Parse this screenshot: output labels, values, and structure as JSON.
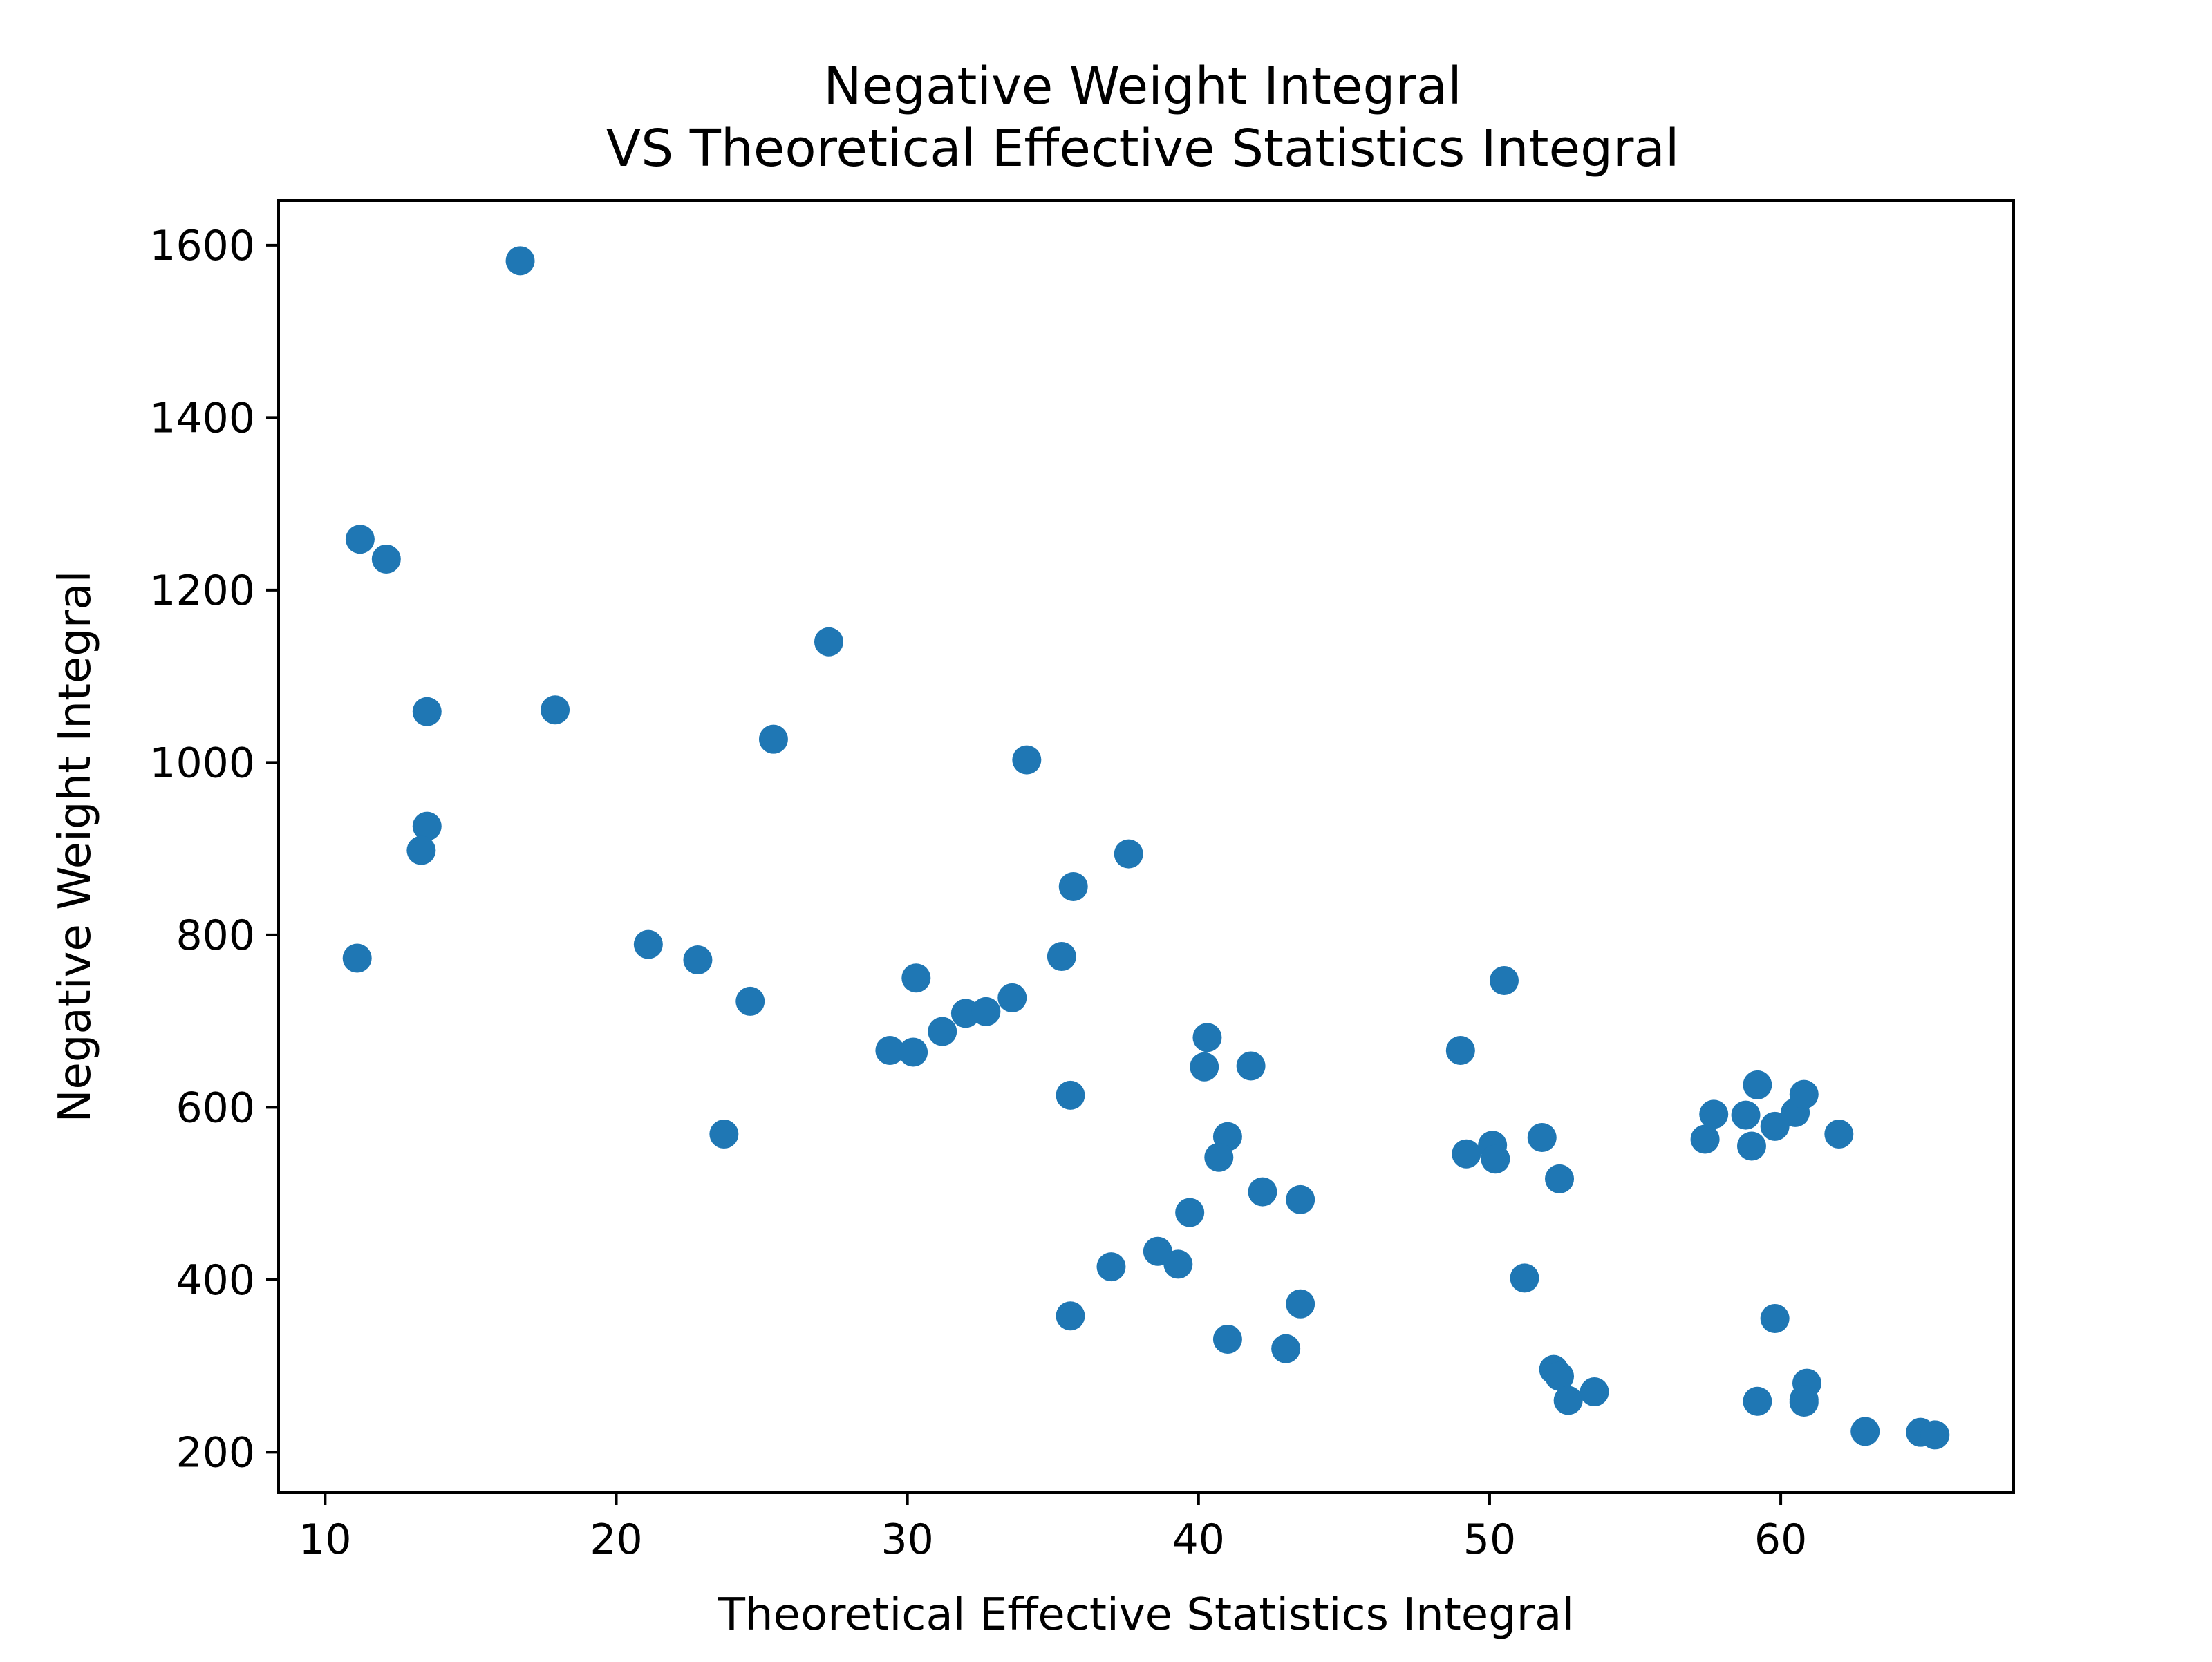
{
  "chart_data": {
    "type": "scatter",
    "title": [
      "Negative Weight Integral",
      "VS Theoretical Effective Statistics Integral"
    ],
    "xlabel": "Theoretical Effective Statistics Integral",
    "ylabel": "Negative Weight Integral",
    "xlim": [
      8.4,
      68.0
    ],
    "ylim": [
      153,
      1652
    ],
    "xticks": [
      10,
      20,
      30,
      40,
      50,
      60
    ],
    "yticks": [
      200,
      400,
      600,
      800,
      1000,
      1200,
      1400,
      1600
    ],
    "grid": false,
    "marker_color": "#1f77b4",
    "series": [
      {
        "points": [
          [
            16.7,
            1582
          ],
          [
            11.2,
            1259
          ],
          [
            12.1,
            1236
          ],
          [
            13.5,
            1059
          ],
          [
            17.9,
            1061
          ],
          [
            13.5,
            926
          ],
          [
            13.3,
            898
          ],
          [
            11.1,
            773
          ],
          [
            27.3,
            1140
          ],
          [
            25.4,
            1027
          ],
          [
            34.1,
            1003
          ],
          [
            21.1,
            789
          ],
          [
            22.8,
            771
          ],
          [
            24.6,
            723
          ],
          [
            23.7,
            569
          ],
          [
            37.6,
            894
          ],
          [
            35.7,
            856
          ],
          [
            35.3,
            775
          ],
          [
            30.3,
            750
          ],
          [
            29.4,
            666
          ],
          [
            30.2,
            664
          ],
          [
            31.2,
            688
          ],
          [
            32.0,
            709
          ],
          [
            32.7,
            711
          ],
          [
            33.6,
            727
          ],
          [
            35.6,
            614
          ],
          [
            40.3,
            681
          ],
          [
            40.2,
            647
          ],
          [
            41.8,
            648
          ],
          [
            41.0,
            566
          ],
          [
            40.7,
            542
          ],
          [
            42.2,
            502
          ],
          [
            43.5,
            493
          ],
          [
            39.7,
            478
          ],
          [
            38.6,
            433
          ],
          [
            39.3,
            418
          ],
          [
            37.0,
            415
          ],
          [
            43.5,
            372
          ],
          [
            35.6,
            358
          ],
          [
            41.0,
            331
          ],
          [
            43.0,
            320
          ],
          [
            49.0,
            666
          ],
          [
            50.5,
            747
          ],
          [
            49.2,
            546
          ],
          [
            50.1,
            556
          ],
          [
            50.2,
            540
          ],
          [
            51.8,
            565
          ],
          [
            52.4,
            517
          ],
          [
            51.2,
            402
          ],
          [
            52.2,
            296
          ],
          [
            52.4,
            288
          ],
          [
            52.7,
            260
          ],
          [
            53.6,
            270
          ],
          [
            57.4,
            563
          ],
          [
            57.7,
            592
          ],
          [
            58.8,
            591
          ],
          [
            59.0,
            555
          ],
          [
            59.2,
            626
          ],
          [
            59.8,
            578
          ],
          [
            60.5,
            594
          ],
          [
            60.8,
            615
          ],
          [
            62.0,
            569
          ],
          [
            59.8,
            355
          ],
          [
            59.2,
            259
          ],
          [
            60.9,
            280
          ],
          [
            60.8,
            261
          ],
          [
            60.8,
            258
          ],
          [
            62.9,
            224
          ],
          [
            64.8,
            223
          ],
          [
            65.3,
            220
          ]
        ]
      }
    ]
  }
}
